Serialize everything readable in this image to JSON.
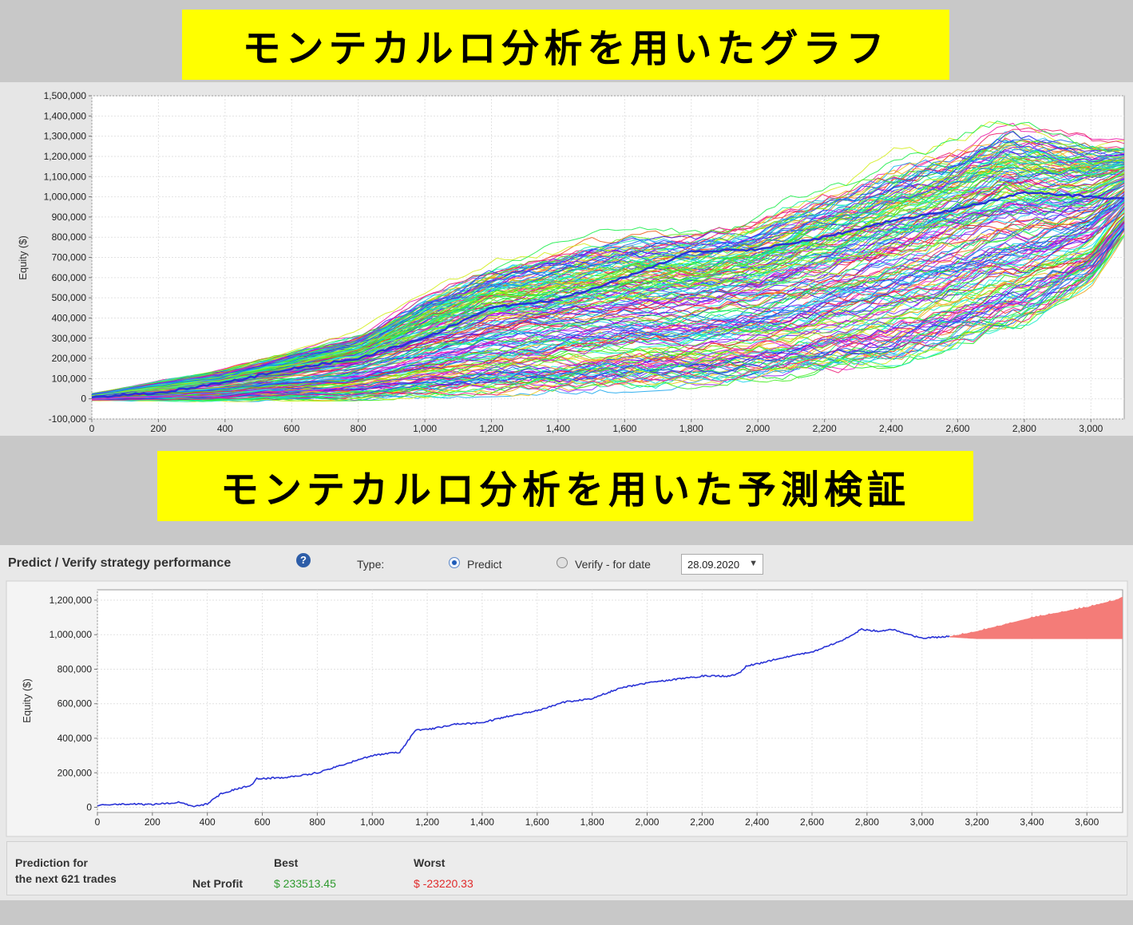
{
  "banners": {
    "top": "モンテカルロ分析を用いたグラフ",
    "bottom": "モンテカルロ分析を用いた予測検証"
  },
  "colors": {
    "banner_bg": "#ffff00",
    "median_line": "#2a33d6",
    "prediction_area": "#f47c78",
    "best_value": "#2e9a2e",
    "worst_value": "#e02a2a"
  },
  "monte_carlo_chart": {
    "chart_data": {
      "type": "line",
      "title": "",
      "xlabel": "",
      "ylabel": "Equity ($)",
      "xlim": [
        0,
        3100
      ],
      "ylim": [
        -100000,
        1500000
      ],
      "x_ticks": [
        "0",
        "200",
        "400",
        "600",
        "800",
        "1,000",
        "1,200",
        "1,400",
        "1,600",
        "1,800",
        "2,000",
        "2,200",
        "2,400",
        "2,600",
        "2,800",
        "3,000"
      ],
      "y_ticks": [
        "-100,000",
        "0",
        "100,000",
        "200,000",
        "300,000",
        "400,000",
        "500,000",
        "600,000",
        "700,000",
        "800,000",
        "900,000",
        "1,000,000",
        "1,100,000",
        "1,200,000",
        "1,300,000",
        "1,400,000",
        "1,500,000"
      ],
      "grid": true,
      "simulated_paths": 200,
      "median_series": {
        "x": [
          0,
          200,
          400,
          600,
          800,
          1000,
          1200,
          1400,
          1600,
          1800,
          2000,
          2200,
          2400,
          2600,
          2800,
          3000,
          3100
        ],
        "y": [
          10000,
          30000,
          80000,
          150000,
          200000,
          300000,
          450000,
          490000,
          600000,
          730000,
          740000,
          800000,
          880000,
          940000,
          1020000,
          1000000,
          990000
        ]
      },
      "envelope_high": {
        "x": [
          0,
          400,
          800,
          1000,
          1200,
          1400,
          1600,
          1800,
          2000,
          2200,
          2400,
          2600,
          2750,
          2900,
          3100
        ],
        "y": [
          30000,
          160000,
          350000,
          560000,
          720000,
          800000,
          870000,
          880000,
          950000,
          1100000,
          1250000,
          1350000,
          1450000,
          1380000,
          1300000
        ]
      },
      "envelope_low": {
        "x": [
          0,
          400,
          800,
          1000,
          1200,
          1400,
          1600,
          1800,
          2000,
          2200,
          2400,
          2600,
          2800,
          3000,
          3100
        ],
        "y": [
          -10000,
          -15000,
          -10000,
          0,
          10000,
          20000,
          30000,
          50000,
          80000,
          100000,
          150000,
          250000,
          350000,
          550000,
          800000
        ]
      }
    }
  },
  "prediction_panel": {
    "title": "Predict / Verify strategy performance",
    "help_icon": "help-icon",
    "type_label": "Type:",
    "predict_label": "Predict",
    "verify_label": "Verify - for date",
    "selected_type": "Predict",
    "date_value": "28.09.2020",
    "chart_data": {
      "type": "line",
      "title": "",
      "xlabel": "",
      "ylabel": "Equity ($)",
      "xlim": [
        0,
        3730
      ],
      "ylim": [
        -30000,
        1260000
      ],
      "x_ticks": [
        "0",
        "200",
        "400",
        "600",
        "800",
        "1,000",
        "1,200",
        "1,400",
        "1,600",
        "1,800",
        "2,000",
        "2,200",
        "2,400",
        "2,600",
        "2,800",
        "3,000",
        "3,200",
        "3,400",
        "3,600"
      ],
      "y_ticks": [
        "0",
        "200,000",
        "400,000",
        "600,000",
        "800,000",
        "1,000,000",
        "1,200,000"
      ],
      "grid": true,
      "series": [
        {
          "x": [
            0,
            100,
            200,
            300,
            350,
            400,
            450,
            560,
            580,
            700,
            800,
            900,
            1000,
            1100,
            1160,
            1200,
            1300,
            1400,
            1500,
            1600,
            1700,
            1800,
            1900,
            2000,
            2100,
            2200,
            2300,
            2340,
            2360,
            2400,
            2500,
            2600,
            2700,
            2780,
            2850,
            2900,
            2950,
            3000,
            3050,
            3100
          ],
          "y": [
            10000,
            20000,
            15000,
            30000,
            5000,
            20000,
            80000,
            130000,
            165000,
            175000,
            200000,
            250000,
            300000,
            320000,
            450000,
            450000,
            480000,
            490000,
            530000,
            560000,
            610000,
            630000,
            690000,
            720000,
            740000,
            760000,
            760000,
            780000,
            820000,
            830000,
            870000,
            900000,
            960000,
            1030000,
            1020000,
            1030000,
            1000000,
            980000,
            985000,
            990000
          ]
        }
      ],
      "prediction_band": {
        "x": [
          3100,
          3200,
          3300,
          3400,
          3500,
          3600,
          3700,
          3730
        ],
        "upper": [
          990000,
          1020000,
          1060000,
          1100000,
          1130000,
          1160000,
          1200000,
          1220000
        ],
        "lower": [
          985000,
          975000,
          975000,
          975000,
          975000,
          975000,
          975000,
          975000
        ]
      }
    },
    "summary": {
      "prediction_for": "Prediction for",
      "next_trades": "the next 621 trades",
      "best_header": "Best",
      "worst_header": "Worst",
      "net_profit_label": "Net Profit",
      "best_value": "$ 233513.45",
      "worst_value": "$ -23220.33"
    }
  }
}
